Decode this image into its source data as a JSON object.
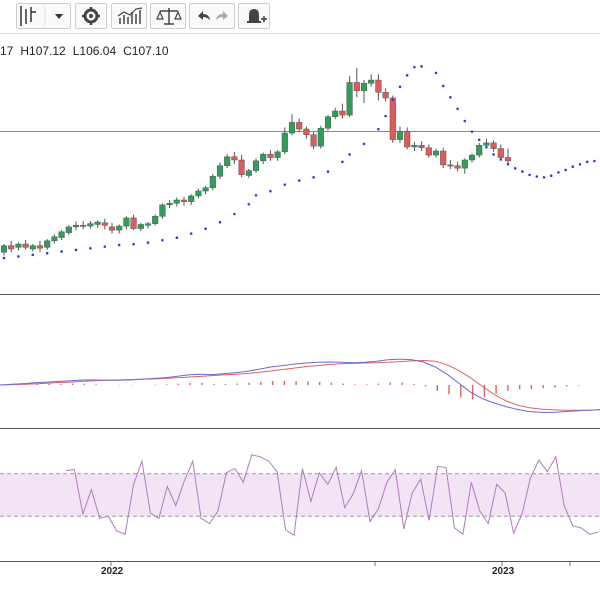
{
  "toolbar": {
    "buttons": [
      {
        "name": "chart-type-icon",
        "glyph": "candles-dropdown"
      },
      {
        "name": "settings-gear-icon",
        "glyph": "gear"
      },
      {
        "name": "indicators-icon",
        "glyph": "indicators"
      },
      {
        "name": "compare-scale-icon",
        "glyph": "scale"
      },
      {
        "name": "undo-icon",
        "glyph": "undo"
      },
      {
        "name": "redo-icon",
        "glyph": "redo"
      },
      {
        "name": "alert-bell-icon",
        "glyph": "bell-plus"
      }
    ]
  },
  "ohlc": {
    "open_fragment": "17",
    "high": "H107.12",
    "low": "L106.04",
    "close": "C107.10"
  },
  "x_axis": {
    "year_2022": "2022",
    "year_2023": "2023"
  },
  "colors": {
    "up": "#2e9e5b",
    "down": "#e05a5a",
    "sar": "#3a3ad6",
    "macd": "#6b6bd6",
    "signal": "#e06060",
    "rsi_line": "#b07ac0",
    "rsi_band": "#f3e4f5"
  },
  "chart_data": [
    {
      "type": "candlestick",
      "price_line": 99,
      "candles": [
        {
          "o": 84.2,
          "h": 85.2,
          "c": 85.0,
          "l": 83.8
        },
        {
          "o": 85.0,
          "h": 85.6,
          "c": 84.6,
          "l": 84.2
        },
        {
          "o": 84.8,
          "h": 85.4,
          "c": 85.2,
          "l": 84.4
        },
        {
          "o": 85.2,
          "h": 85.7,
          "c": 84.8,
          "l": 84.5
        },
        {
          "o": 84.6,
          "h": 85.2,
          "c": 85.0,
          "l": 84.3
        },
        {
          "o": 85.0,
          "h": 85.6,
          "c": 84.7,
          "l": 84.2
        },
        {
          "o": 84.8,
          "h": 85.8,
          "c": 85.6,
          "l": 84.5
        },
        {
          "o": 85.6,
          "h": 86.4,
          "c": 86.1,
          "l": 85.3
        },
        {
          "o": 86.0,
          "h": 86.9,
          "c": 86.7,
          "l": 85.7
        },
        {
          "o": 86.6,
          "h": 87.5,
          "c": 87.3,
          "l": 86.3
        },
        {
          "o": 87.3,
          "h": 88.0,
          "c": 87.5,
          "l": 86.9
        },
        {
          "o": 87.5,
          "h": 88.0,
          "c": 87.4,
          "l": 87.0
        },
        {
          "o": 87.4,
          "h": 88.0,
          "c": 87.7,
          "l": 87.1
        },
        {
          "o": 87.6,
          "h": 88.1,
          "c": 87.9,
          "l": 87.2
        },
        {
          "o": 87.8,
          "h": 88.3,
          "c": 87.5,
          "l": 87.0
        },
        {
          "o": 87.3,
          "h": 87.8,
          "c": 86.9,
          "l": 86.5
        },
        {
          "o": 86.9,
          "h": 87.6,
          "c": 87.4,
          "l": 86.5
        },
        {
          "o": 87.4,
          "h": 88.6,
          "c": 88.4,
          "l": 87.0
        },
        {
          "o": 88.4,
          "h": 88.8,
          "c": 87.1,
          "l": 86.9
        },
        {
          "o": 87.1,
          "h": 87.8,
          "c": 87.6,
          "l": 86.8
        },
        {
          "o": 87.5,
          "h": 87.9,
          "c": 87.7,
          "l": 87.1
        },
        {
          "o": 87.7,
          "h": 88.8,
          "c": 88.6,
          "l": 87.5
        },
        {
          "o": 88.6,
          "h": 90.2,
          "c": 90.0,
          "l": 88.3
        },
        {
          "o": 90.0,
          "h": 90.6,
          "c": 90.2,
          "l": 89.6
        },
        {
          "o": 90.2,
          "h": 90.9,
          "c": 90.6,
          "l": 89.8
        },
        {
          "o": 90.6,
          "h": 91.0,
          "c": 90.4,
          "l": 89.9
        },
        {
          "o": 90.4,
          "h": 91.3,
          "c": 91.1,
          "l": 90.0
        },
        {
          "o": 91.1,
          "h": 92.0,
          "c": 91.7,
          "l": 90.8
        },
        {
          "o": 91.7,
          "h": 92.3,
          "c": 92.1,
          "l": 91.3
        },
        {
          "o": 92.1,
          "h": 93.8,
          "c": 93.5,
          "l": 91.8
        },
        {
          "o": 93.5,
          "h": 95.2,
          "c": 94.8,
          "l": 93.2
        },
        {
          "o": 94.8,
          "h": 96.2,
          "c": 95.9,
          "l": 94.5
        },
        {
          "o": 95.9,
          "h": 96.5,
          "c": 95.5,
          "l": 95.0
        },
        {
          "o": 95.5,
          "h": 96.1,
          "c": 93.7,
          "l": 93.4
        },
        {
          "o": 93.6,
          "h": 94.4,
          "c": 94.2,
          "l": 93.3
        },
        {
          "o": 94.2,
          "h": 95.7,
          "c": 95.4,
          "l": 93.9
        },
        {
          "o": 95.4,
          "h": 96.4,
          "c": 96.2,
          "l": 95.0
        },
        {
          "o": 96.2,
          "h": 96.7,
          "c": 95.8,
          "l": 95.4
        },
        {
          "o": 95.8,
          "h": 96.7,
          "c": 96.5,
          "l": 95.4
        },
        {
          "o": 96.5,
          "h": 99.5,
          "c": 98.8,
          "l": 96.2
        },
        {
          "o": 98.8,
          "h": 101.1,
          "c": 100.1,
          "l": 98.5
        },
        {
          "o": 100.1,
          "h": 100.6,
          "c": 99.3,
          "l": 98.9
        },
        {
          "o": 99.3,
          "h": 99.6,
          "c": 98.6,
          "l": 98.1
        },
        {
          "o": 98.6,
          "h": 98.9,
          "c": 97.2,
          "l": 96.8
        },
        {
          "o": 97.2,
          "h": 99.7,
          "c": 99.4,
          "l": 96.9
        },
        {
          "o": 99.4,
          "h": 101.0,
          "c": 100.8,
          "l": 99.1
        },
        {
          "o": 100.8,
          "h": 101.9,
          "c": 101.5,
          "l": 100.5
        },
        {
          "o": 101.5,
          "h": 102.4,
          "c": 101.0,
          "l": 100.6
        },
        {
          "o": 101.0,
          "h": 105.8,
          "c": 105.0,
          "l": 100.8
        },
        {
          "o": 105.0,
          "h": 106.8,
          "c": 104.0,
          "l": 103.2
        },
        {
          "o": 104.0,
          "h": 105.3,
          "c": 104.9,
          "l": 102.5
        },
        {
          "o": 104.9,
          "h": 106.0,
          "c": 105.3,
          "l": 104.5
        },
        {
          "o": 105.3,
          "h": 106.0,
          "c": 103.8,
          "l": 102.8
        },
        {
          "o": 103.8,
          "h": 104.3,
          "c": 103.1,
          "l": 102.7
        },
        {
          "o": 103.1,
          "h": 103.4,
          "c": 98.0,
          "l": 97.6
        },
        {
          "o": 98.0,
          "h": 99.6,
          "c": 99.0,
          "l": 97.6
        },
        {
          "o": 99.0,
          "h": 99.5,
          "c": 97.1,
          "l": 96.8
        },
        {
          "o": 97.1,
          "h": 97.7,
          "c": 97.3,
          "l": 96.6
        },
        {
          "o": 97.3,
          "h": 97.8,
          "c": 97.0,
          "l": 96.6
        },
        {
          "o": 97.0,
          "h": 97.4,
          "c": 96.1,
          "l": 95.8
        },
        {
          "o": 96.1,
          "h": 96.9,
          "c": 96.6,
          "l": 95.8
        },
        {
          "o": 96.6,
          "h": 97.0,
          "c": 94.9,
          "l": 94.5
        },
        {
          "o": 94.9,
          "h": 95.5,
          "c": 94.8,
          "l": 94.4
        },
        {
          "o": 94.8,
          "h": 95.3,
          "c": 94.5,
          "l": 94.1
        },
        {
          "o": 94.5,
          "h": 95.7,
          "c": 95.5,
          "l": 93.8
        },
        {
          "o": 95.5,
          "h": 96.3,
          "c": 96.1,
          "l": 95.2
        },
        {
          "o": 96.1,
          "h": 97.6,
          "c": 97.3,
          "l": 95.8
        },
        {
          "o": 97.3,
          "h": 98.1,
          "c": 97.6,
          "l": 96.9
        },
        {
          "o": 97.6,
          "h": 97.9,
          "c": 96.9,
          "l": 96.5
        },
        {
          "o": 96.9,
          "h": 97.4,
          "c": 95.8,
          "l": 95.4
        },
        {
          "o": 95.8,
          "h": 96.9,
          "c": 95.4,
          "l": 95.0
        }
      ],
      "sar": [
        [
          0,
          83.6
        ],
        [
          2,
          83.8
        ],
        [
          4,
          84.0
        ],
        [
          6,
          84.2
        ],
        [
          8,
          84.4
        ],
        [
          10,
          84.6
        ],
        [
          12,
          84.8
        ],
        [
          14,
          85.0
        ],
        [
          16,
          85.2
        ],
        [
          18,
          85.3
        ],
        [
          20,
          85.5
        ],
        [
          22,
          85.8
        ],
        [
          24,
          86.1
        ],
        [
          26,
          86.6
        ],
        [
          28,
          87.2
        ],
        [
          30,
          88.0
        ],
        [
          32,
          89.0
        ],
        [
          34,
          90.2
        ],
        [
          35,
          91.3
        ],
        [
          37,
          91.8
        ],
        [
          39,
          92.6
        ],
        [
          41,
          93.1
        ],
        [
          43,
          93.5
        ],
        [
          45,
          94.2
        ],
        [
          47,
          95.4
        ],
        [
          48,
          96.3
        ],
        [
          50,
          97.6
        ],
        [
          52,
          99.4
        ],
        [
          53,
          101.0
        ],
        [
          54,
          103.0
        ],
        [
          55,
          104.6
        ],
        [
          56,
          106.0
        ],
        [
          57,
          107.0
        ],
        [
          58,
          107.1
        ],
        [
          60,
          106.3
        ],
        [
          61,
          104.7
        ],
        [
          62,
          103.3
        ],
        [
          63,
          101.9
        ],
        [
          64,
          100.4
        ],
        [
          65,
          99.1
        ],
        [
          66,
          98.1
        ],
        [
          67,
          97.2
        ],
        [
          68,
          96.3
        ],
        [
          69,
          95.7
        ],
        [
          70,
          95.1
        ],
        [
          71,
          94.6
        ],
        [
          72,
          94.2
        ],
        [
          73,
          93.8
        ],
        [
          74,
          93.6
        ],
        [
          75,
          93.5
        ],
        [
          76,
          93.7
        ],
        [
          77,
          94.1
        ],
        [
          78,
          94.4
        ],
        [
          79,
          94.8
        ],
        [
          80,
          95.1
        ],
        [
          81,
          95.4
        ],
        [
          82,
          95.5
        ],
        [
          83,
          95.6
        ]
      ]
    },
    {
      "type": "line",
      "series": [
        {
          "values": [
            0.0,
            0.2,
            0.4,
            0.6,
            0.8,
            1.0,
            1.2,
            1.4,
            1.4,
            1.3,
            1.3,
            1.4,
            1.6,
            1.8,
            2.0,
            2.4,
            2.8,
            3.0,
            2.9,
            3.1,
            3.4,
            3.8,
            4.4,
            5.0,
            5.4,
            5.8,
            6.1,
            6.3,
            6.4,
            6.3,
            6.2,
            6.3,
            6.6,
            7.0,
            7.2,
            7.0,
            6.4,
            5.0,
            3.0,
            0.5,
            -2.0,
            -3.8,
            -5.0,
            -6.0,
            -6.8,
            -7.4,
            -7.6,
            -7.6,
            -7.4,
            -7.2,
            -7.0,
            -6.9
          ]
        },
        {
          "values": [
            0.0,
            0.1,
            0.2,
            0.3,
            0.5,
            0.7,
            0.8,
            1.0,
            1.2,
            1.3,
            1.4,
            1.5,
            1.6,
            1.7,
            1.8,
            2.0,
            2.2,
            2.4,
            2.6,
            2.8,
            3.0,
            3.2,
            3.5,
            3.9,
            4.3,
            4.7,
            5.1,
            5.4,
            5.7,
            5.9,
            6.0,
            6.1,
            6.2,
            6.3,
            6.5,
            6.7,
            6.8,
            6.6,
            5.6,
            4.0,
            2.0,
            -0.4,
            -2.6,
            -4.4,
            -5.6,
            -6.3,
            -6.7,
            -6.9,
            -7.0,
            -7.0,
            -7.0,
            -6.9
          ]
        }
      ],
      "histogram": [
        0.1,
        0.1,
        0.2,
        0.3,
        0.3,
        0.3,
        0.4,
        0.4,
        0.2,
        0.0,
        -0.1,
        -0.1,
        0.0,
        0.1,
        0.2,
        0.4,
        0.6,
        0.6,
        0.3,
        0.3,
        0.4,
        0.6,
        0.9,
        1.1,
        1.1,
        1.1,
        1.0,
        0.9,
        0.7,
        0.4,
        0.2,
        0.2,
        0.4,
        0.7,
        0.7,
        0.3,
        -0.4,
        -1.6,
        -2.6,
        -3.5,
        -4.0,
        -3.4,
        -2.4,
        -1.6,
        -1.2,
        -1.1,
        -0.9,
        -0.7,
        -0.4,
        -0.2,
        0.0,
        0.0
      ]
    },
    {
      "type": "line",
      "upper": 70,
      "lower": 30,
      "values": [
        73,
        74,
        32,
        55,
        28,
        30,
        16,
        13,
        60,
        82,
        33,
        28,
        58,
        40,
        63,
        82,
        28,
        23,
        35,
        71,
        75,
        62,
        88,
        86,
        82,
        72,
        17,
        12,
        75,
        44,
        71,
        60,
        76,
        38,
        51,
        73,
        25,
        37,
        62,
        74,
        18,
        52,
        65,
        26,
        77,
        76,
        19,
        13,
        62,
        35,
        23,
        60,
        52,
        14,
        32,
        66,
        83,
        72,
        86,
        40,
        21,
        19,
        13,
        15
      ]
    }
  ]
}
